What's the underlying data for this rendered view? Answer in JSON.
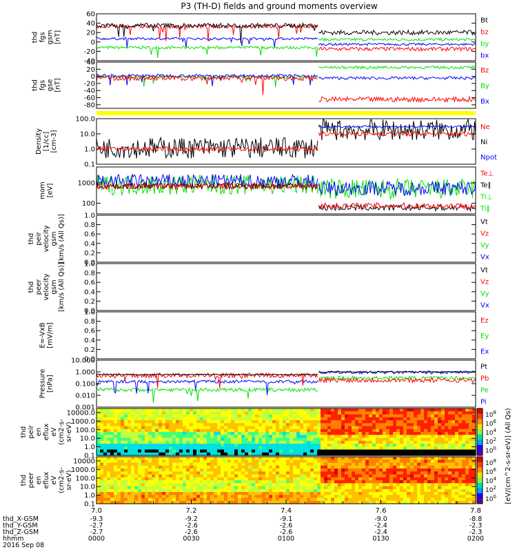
{
  "title": "P3 (TH-D) fields and ground moments overview",
  "colors": {
    "black": "#000000",
    "red": "#ff0000",
    "green": "#00e000",
    "blue": "#0000ff",
    "yellow": "#ffff00"
  },
  "chart_data": [
    {
      "type": "line",
      "id": "fgs_gsm",
      "ylabel": [
        "thd",
        "fgs",
        "gsm",
        "[nT]"
      ],
      "ylim": [
        -40,
        60
      ],
      "ticks": [
        "60",
        "40",
        "20",
        "0",
        "-20",
        "-40"
      ],
      "series": [
        {
          "name": "Bt",
          "color": "black"
        },
        {
          "name": "bz",
          "color": "red"
        },
        {
          "name": "by",
          "color": "green"
        },
        {
          "name": "bx",
          "color": "blue"
        }
      ],
      "approx": {
        "Bt": {
          "before": 35,
          "after": 20
        },
        "bz": {
          "before": 33,
          "after": -15
        },
        "by": {
          "before": -12,
          "after": 5
        },
        "bx": {
          "before": 7,
          "after": -5
        }
      }
    },
    {
      "type": "line",
      "id": "fgs_gse",
      "ylabel": [
        "thd",
        "fgs",
        "gse",
        "[nT]"
      ],
      "ylim": [
        -90,
        40
      ],
      "ticks": [
        "40",
        "20",
        "0",
        "-20",
        "-40",
        "-60",
        "-80"
      ],
      "series": [
        {
          "name": "Bz",
          "color": "red"
        },
        {
          "name": "By",
          "color": "green"
        },
        {
          "name": "Bx",
          "color": "blue"
        }
      ],
      "approx": {
        "Bz": {
          "before": -5,
          "after": -65
        },
        "By": {
          "before": -2,
          "after": 25
        },
        "Bx": {
          "before": 2,
          "after": -5
        }
      }
    },
    {
      "type": "line",
      "id": "density",
      "ylabel": [
        "Density",
        "[1/cc]",
        "[cm-3]"
      ],
      "ylim": [
        0.1,
        100
      ],
      "log": true,
      "ticks": [
        "100.0",
        "10.0",
        "1.0",
        "0.1"
      ],
      "series": [
        {
          "name": "Ne",
          "color": "red"
        },
        {
          "name": "Ni",
          "color": "black"
        },
        {
          "name": "Npot",
          "color": "blue"
        }
      ],
      "approx": {
        "Ne": {
          "before": 1.0,
          "after": 10
        },
        "Ni": {
          "before": 1.2,
          "after": 18
        },
        "Npot": {
          "before": null,
          "after": 30
        }
      }
    },
    {
      "type": "line",
      "id": "temperature",
      "ylabel": [
        "mom",
        "[eV]"
      ],
      "ylim": [
        30,
        6000
      ],
      "log": true,
      "ticks": [
        "1000",
        "100"
      ],
      "series": [
        {
          "name": "Te⊥",
          "color": "red"
        },
        {
          "name": "Te∥",
          "color": "black"
        },
        {
          "name": "Ti⊥",
          "color": "green"
        },
        {
          "name": "Ti∥",
          "color": "green"
        }
      ],
      "approx": {
        "Te": {
          "before": 700,
          "after": 75
        },
        "Ti": {
          "before": 800,
          "after": 500
        }
      }
    },
    {
      "type": "line",
      "id": "peir_velocity",
      "ylabel": [
        "thd",
        "peir",
        "velocity",
        "gsm",
        "[km/s (All Qs)]"
      ],
      "ylim": [
        0,
        1
      ],
      "ticks": [
        "1.0",
        "0.8",
        "0.6",
        "0.4",
        "0.2",
        "0.0"
      ],
      "series": [
        {
          "name": "Vt",
          "color": "black"
        },
        {
          "name": "Vz",
          "color": "red"
        },
        {
          "name": "Vy",
          "color": "green"
        },
        {
          "name": "Vx",
          "color": "blue"
        }
      ]
    },
    {
      "type": "line",
      "id": "peer_velocity",
      "ylabel": [
        "thd",
        "peer",
        "velocity",
        "gsm",
        "[km/s (All Qs)]"
      ],
      "ylim": [
        0,
        1
      ],
      "ticks": [
        "1.0",
        "0.8",
        "0.6",
        "0.4",
        "0.2",
        "0.0"
      ],
      "series": [
        {
          "name": "Vt",
          "color": "black"
        },
        {
          "name": "Vz",
          "color": "red"
        },
        {
          "name": "Vy",
          "color": "green"
        },
        {
          "name": "Vx",
          "color": "blue"
        }
      ]
    },
    {
      "type": "line",
      "id": "efield",
      "ylabel": [
        "E=-VxB",
        "[mV/m]"
      ],
      "ylim": [
        0,
        1
      ],
      "ticks": [
        "1.0",
        "0.8",
        "0.6",
        "0.4",
        "0.2",
        "0.0"
      ],
      "series": [
        {
          "name": "Ez",
          "color": "red"
        },
        {
          "name": "Ey",
          "color": "green"
        },
        {
          "name": "Ex",
          "color": "blue"
        }
      ]
    },
    {
      "type": "line",
      "id": "pressure",
      "ylabel": [
        "Pressure",
        "[nPa]"
      ],
      "ylim": [
        0.001,
        10
      ],
      "log": true,
      "ticks": [
        "10.000",
        "1.000",
        "0.100",
        "0.010",
        "0.001"
      ],
      "series": [
        {
          "name": "Pt",
          "color": "black"
        },
        {
          "name": "Pb",
          "color": "red"
        },
        {
          "name": "Pe",
          "color": "green"
        },
        {
          "name": "Pi",
          "color": "blue"
        }
      ],
      "approx": {
        "Pt": {
          "before": 0.6,
          "after": 1.0
        },
        "Pb": {
          "before": 0.5,
          "after": 0.2
        },
        "Pe": {
          "before": 0.03,
          "after": 0.3
        },
        "Pi": {
          "before": 0.15,
          "after": 0.9
        }
      }
    },
    {
      "type": "heatmap",
      "id": "peir_spectrogram",
      "ylabel": [
        "thd",
        "peir",
        "en",
        "eflux",
        "eV",
        "(cm2-s-",
        "sr-eV)"
      ],
      "ylim": [
        0.1,
        30000
      ],
      "log": true,
      "ticks": [
        "10000.0",
        "1000.0",
        "100.0",
        "10.0",
        "1.0",
        "0.1"
      ]
    },
    {
      "type": "heatmap",
      "id": "peer_spectrogram",
      "ylabel": [
        "thd",
        "peer",
        "en",
        "eflux",
        "eV",
        "(cm2-s-",
        "sr-eV)"
      ],
      "ylim": [
        0.1,
        30000
      ],
      "log": true,
      "ticks": [
        "10000",
        "1000.0",
        "100.0",
        "10.0",
        "1.0",
        "0.1"
      ]
    }
  ],
  "colorbar": {
    "label": "[eV/(cm^2-s-sr-eV)] (All Qs)",
    "ticks": [
      "10^8",
      "10^6",
      "10^4",
      "10^2",
      "10^0",
      "10^8",
      "10^6",
      "10^4",
      "10^2",
      "10^0"
    ]
  },
  "x_axis": {
    "ticks": [
      "7.0",
      "7.2",
      "7.4",
      "7.6",
      "7.8"
    ],
    "rows": [
      {
        "label": "thd_X-GSM",
        "values": [
          "-9.3",
          "-9.2",
          "-9.1",
          "-9.0",
          "-8.8"
        ]
      },
      {
        "label": "thd_Y-GSM",
        "values": [
          "-2.7",
          "-2.6",
          "-2.6",
          "-2.4",
          "-2.3"
        ]
      },
      {
        "label": "thd_Z-GSM",
        "values": [
          "-2.7",
          "-2.6",
          "-2.6",
          "-2.4",
          "-2.3"
        ]
      },
      {
        "label": "hhmm",
        "values": [
          "0000",
          "0030",
          "0100",
          "0130",
          "0200"
        ]
      }
    ],
    "date": "2016 Sep 08"
  },
  "transition_fraction": 0.585
}
